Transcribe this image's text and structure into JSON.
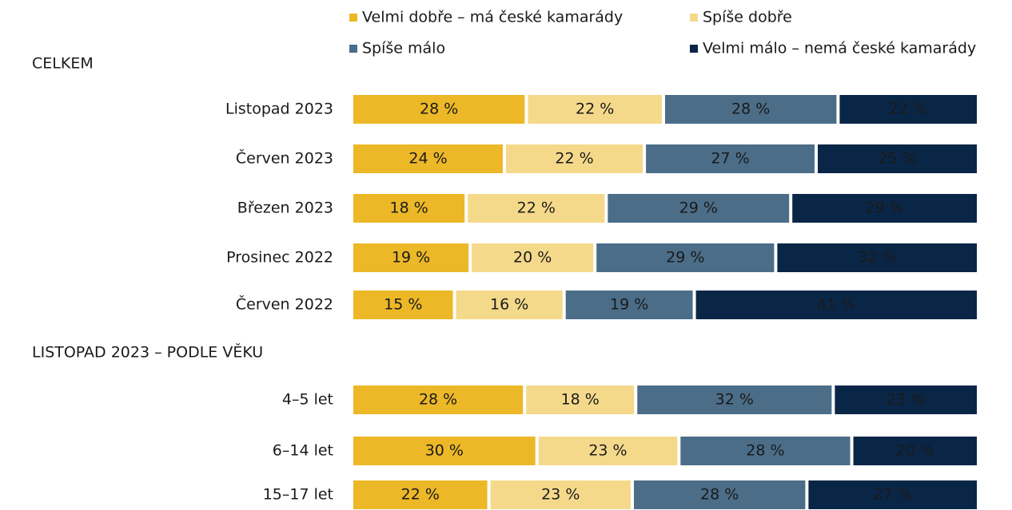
{
  "chart_data": [
    {
      "type": "bar",
      "orientation": "horizontal",
      "stacked": "percent",
      "title": "CELKEM",
      "categories": [
        "Listopad 2023",
        "Červen 2023",
        "Březen 2023",
        "Prosinec 2022",
        "Červen 2022"
      ],
      "series": [
        {
          "name": "Velmi dobře – má české kamarády",
          "color": "#ecb827",
          "values": [
            28,
            24,
            18,
            19,
            15
          ],
          "value_labels": [
            "28 %",
            "24 %",
            "18 %",
            "19 %",
            "15 %"
          ]
        },
        {
          "name": "Spíše dobře",
          "color": "#f5d98b",
          "values": [
            22,
            22,
            22,
            20,
            16
          ],
          "value_labels": [
            "22 %",
            "22 %",
            "22 %",
            "20 %",
            "16 %"
          ]
        },
        {
          "name": "Spíše málo",
          "color": "#4b6d88",
          "values": [
            28,
            27,
            29,
            29,
            19
          ],
          "value_labels": [
            "28 %",
            "27 %",
            "29 %",
            "29 %",
            "19 %"
          ]
        },
        {
          "name": "Velmi málo – nemá české kamarády",
          "color": "#0a2647",
          "values": [
            22,
            25,
            29,
            32,
            41
          ],
          "value_labels": [
            "22 %",
            "25 %",
            "29 %",
            "32 %",
            "41 %"
          ]
        }
      ]
    },
    {
      "type": "bar",
      "orientation": "horizontal",
      "stacked": "percent",
      "title": "LISTOPAD 2023 – PODLE VĚKU",
      "categories": [
        "4–5 let",
        "6–14 let",
        "15–17 let"
      ],
      "series": [
        {
          "color": "#ecb827",
          "values": [
            28,
            30,
            22
          ],
          "value_labels": [
            "28 %",
            "30 %",
            "22 %"
          ]
        },
        {
          "color": "#f5d98b",
          "values": [
            18,
            23,
            23
          ],
          "value_labels": [
            "18 %",
            "23 %",
            "23 %"
          ]
        },
        {
          "color": "#4b6d88",
          "values": [
            32,
            28,
            28
          ],
          "value_labels": [
            "32 %",
            "28 %",
            "28 %"
          ]
        },
        {
          "color": "#0a2647",
          "values": [
            23,
            20,
            27
          ],
          "value_labels": [
            "23 %",
            "20 %",
            "27 %"
          ]
        }
      ]
    }
  ]
}
